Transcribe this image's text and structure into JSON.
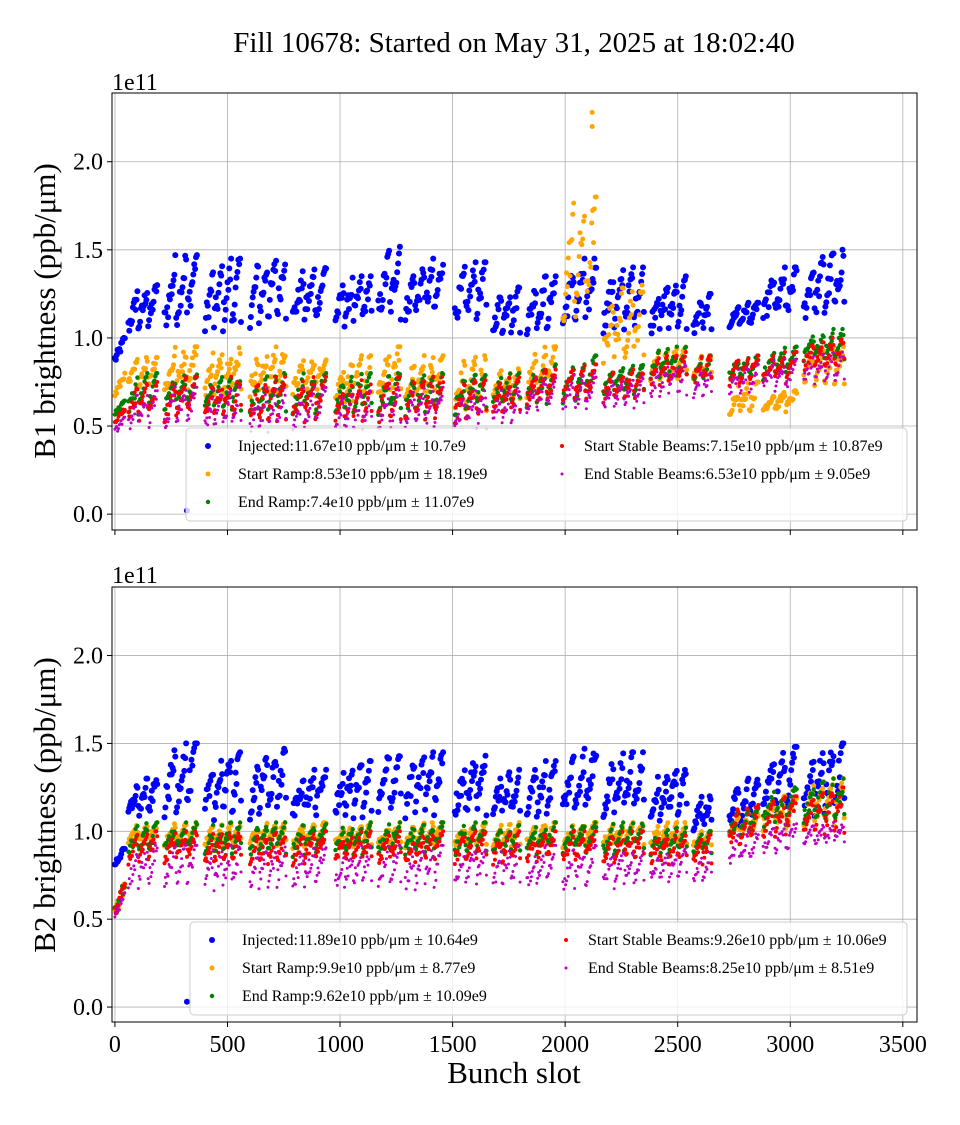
{
  "title": "Fill 10678: Started on May 31, 2025 at 18:02:40",
  "colors": {
    "injected": "#0000ff",
    "start_ramp": "#ffa500",
    "end_ramp": "#008000",
    "start_stable": "#ff0000",
    "end_stable": "#c000c0"
  },
  "chart_data": [
    {
      "type": "scatter",
      "ylabel": "B1 brightness (ppb/μm)",
      "xlabel": "",
      "offset_text": "1e11",
      "xlim": [
        -13,
        3563
      ],
      "ylim": [
        -0.09,
        2.39
      ],
      "xticks": [
        0,
        500,
        1000,
        1500,
        2000,
        2500,
        3000,
        3500
      ],
      "yticks": [
        "0.0",
        "0.5",
        "1.0",
        "1.5",
        "2.0"
      ],
      "grid": true,
      "legend_placement": "lower-right",
      "trains": [
        [
          0,
          45
        ],
        [
          60,
          190
        ],
        [
          220,
          365
        ],
        [
          400,
          560
        ],
        [
          600,
          760
        ],
        [
          790,
          940
        ],
        [
          980,
          1140
        ],
        [
          1170,
          1270
        ],
        [
          1290,
          1460
        ],
        [
          1510,
          1650
        ],
        [
          1680,
          1800
        ],
        [
          1830,
          1960
        ],
        [
          1990,
          2140
        ],
        [
          2170,
          2350
        ],
        [
          2380,
          2540
        ],
        [
          2570,
          2650
        ],
        [
          2730,
          2860
        ],
        [
          2880,
          3030
        ],
        [
          3060,
          3240
        ]
      ],
      "series": [
        {
          "name": "Injected:11.67e10 ppb/μm ± 10.7e9",
          "key": "injected",
          "ranges": [
            [
              0.85,
              1.0
            ],
            [
              1.0,
              1.3
            ],
            [
              1.0,
              1.47
            ],
            [
              1.0,
              1.45
            ],
            [
              1.05,
              1.48
            ],
            [
              1.05,
              1.4
            ],
            [
              1.05,
              1.35
            ],
            [
              1.05,
              1.52
            ],
            [
              1.05,
              1.45
            ],
            [
              1.05,
              1.43
            ],
            [
              1.0,
              1.3
            ],
            [
              1.0,
              1.35
            ],
            [
              1.0,
              1.45
            ],
            [
              1.0,
              1.4
            ],
            [
              1.0,
              1.35
            ],
            [
              1.0,
              1.25
            ],
            [
              1.05,
              1.2
            ],
            [
              1.05,
              1.4
            ],
            [
              1.05,
              1.5
            ]
          ]
        },
        {
          "name": "Start Ramp:8.53e10 ppb/μm ± 18.19e9",
          "key": "start_ramp",
          "ranges": [
            [
              0.65,
              0.8
            ],
            [
              0.7,
              0.9
            ],
            [
              0.65,
              0.95
            ],
            [
              0.65,
              0.95
            ],
            [
              0.65,
              0.95
            ],
            [
              0.65,
              0.9
            ],
            [
              0.6,
              0.9
            ],
            [
              0.6,
              0.95
            ],
            [
              0.6,
              0.9
            ],
            [
              0.55,
              0.9
            ],
            [
              0.6,
              0.85
            ],
            [
              0.65,
              0.95
            ],
            [
              1.0,
              1.8
            ],
            [
              0.8,
              1.3
            ],
            [
              0.75,
              0.95
            ],
            [
              0.75,
              0.9
            ],
            [
              0.55,
              0.75
            ],
            [
              0.57,
              0.7
            ],
            [
              0.7,
              0.95
            ]
          ]
        },
        {
          "name": "End Ramp:7.4e10 ppb/μm ± 11.07e9",
          "key": "end_ramp",
          "ranges": [
            [
              0.55,
              0.65
            ],
            [
              0.55,
              0.8
            ],
            [
              0.55,
              0.8
            ],
            [
              0.55,
              0.8
            ],
            [
              0.55,
              0.8
            ],
            [
              0.55,
              0.8
            ],
            [
              0.55,
              0.8
            ],
            [
              0.55,
              0.8
            ],
            [
              0.55,
              0.8
            ],
            [
              0.55,
              0.8
            ],
            [
              0.6,
              0.8
            ],
            [
              0.6,
              0.85
            ],
            [
              0.6,
              0.9
            ],
            [
              0.65,
              0.85
            ],
            [
              0.75,
              0.95
            ],
            [
              0.75,
              0.9
            ],
            [
              0.75,
              0.9
            ],
            [
              0.75,
              0.95
            ],
            [
              0.85,
              1.05
            ]
          ]
        },
        {
          "name": "Start Stable Beams:7.15e10 ppb/μm ± 10.87e9",
          "key": "start_stable",
          "ranges": [
            [
              0.5,
              0.6
            ],
            [
              0.5,
              0.75
            ],
            [
              0.5,
              0.78
            ],
            [
              0.5,
              0.78
            ],
            [
              0.5,
              0.78
            ],
            [
              0.5,
              0.78
            ],
            [
              0.5,
              0.76
            ],
            [
              0.5,
              0.78
            ],
            [
              0.5,
              0.78
            ],
            [
              0.5,
              0.76
            ],
            [
              0.55,
              0.78
            ],
            [
              0.6,
              0.82
            ],
            [
              0.6,
              0.85
            ],
            [
              0.62,
              0.82
            ],
            [
              0.72,
              0.92
            ],
            [
              0.72,
              0.9
            ],
            [
              0.72,
              0.9
            ],
            [
              0.72,
              0.92
            ],
            [
              0.8,
              1.0
            ]
          ]
        },
        {
          "name": "End Stable Beams:6.53e10 ppb/μm ± 9.05e9",
          "key": "end_stable",
          "ranges": [
            [
              0.45,
              0.55
            ],
            [
              0.45,
              0.7
            ],
            [
              0.45,
              0.72
            ],
            [
              0.45,
              0.72
            ],
            [
              0.45,
              0.72
            ],
            [
              0.45,
              0.72
            ],
            [
              0.45,
              0.7
            ],
            [
              0.45,
              0.72
            ],
            [
              0.45,
              0.72
            ],
            [
              0.45,
              0.7
            ],
            [
              0.5,
              0.72
            ],
            [
              0.55,
              0.78
            ],
            [
              0.55,
              0.8
            ],
            [
              0.58,
              0.78
            ],
            [
              0.65,
              0.85
            ],
            [
              0.65,
              0.82
            ],
            [
              0.65,
              0.85
            ],
            [
              0.68,
              0.88
            ],
            [
              0.72,
              0.92
            ]
          ]
        }
      ],
      "outliers": [
        {
          "series": "injected",
          "x": 320,
          "y": 0.02
        },
        {
          "series": "start_ramp",
          "x": 2120,
          "y": 2.28
        },
        {
          "series": "start_ramp",
          "x": 2120,
          "y": 2.2
        }
      ]
    },
    {
      "type": "scatter",
      "ylabel": "B2 brightness (ppb/μm)",
      "xlabel": "Bunch slot",
      "offset_text": "1e11",
      "xlim": [
        -13,
        3563
      ],
      "ylim": [
        -0.085,
        2.39
      ],
      "xticks": [
        0,
        500,
        1000,
        1500,
        2000,
        2500,
        3000,
        3500
      ],
      "yticks": [
        "0.0",
        "0.5",
        "1.0",
        "1.5",
        "2.0"
      ],
      "grid": true,
      "legend_placement": "lower-right",
      "trains": [
        [
          0,
          45
        ],
        [
          60,
          190
        ],
        [
          220,
          365
        ],
        [
          400,
          560
        ],
        [
          600,
          760
        ],
        [
          790,
          940
        ],
        [
          980,
          1140
        ],
        [
          1170,
          1270
        ],
        [
          1290,
          1460
        ],
        [
          1510,
          1650
        ],
        [
          1680,
          1800
        ],
        [
          1830,
          1960
        ],
        [
          1990,
          2140
        ],
        [
          2170,
          2350
        ],
        [
          2380,
          2540
        ],
        [
          2570,
          2650
        ],
        [
          2730,
          2860
        ],
        [
          2880,
          3030
        ],
        [
          3060,
          3240
        ]
      ],
      "series": [
        {
          "name": "Injected:11.89e10 ppb/μm ± 10.64e9",
          "key": "injected",
          "ranges": [
            [
              0.8,
              0.9
            ],
            [
              1.05,
              1.3
            ],
            [
              1.05,
              1.5
            ],
            [
              1.05,
              1.45
            ],
            [
              1.05,
              1.47
            ],
            [
              1.05,
              1.35
            ],
            [
              1.05,
              1.4
            ],
            [
              1.05,
              1.47
            ],
            [
              1.05,
              1.45
            ],
            [
              1.05,
              1.43
            ],
            [
              1.05,
              1.35
            ],
            [
              1.05,
              1.4
            ],
            [
              1.05,
              1.47
            ],
            [
              1.05,
              1.45
            ],
            [
              1.05,
              1.35
            ],
            [
              1.0,
              1.2
            ],
            [
              1.0,
              1.3
            ],
            [
              1.05,
              1.48
            ],
            [
              1.05,
              1.5
            ]
          ]
        },
        {
          "name": "Start Ramp:9.9e10 ppb/μm ± 8.77e9",
          "key": "start_ramp",
          "ranges": [
            [
              0.5,
              0.7
            ],
            [
              0.9,
              1.05
            ],
            [
              0.9,
              1.05
            ],
            [
              0.9,
              1.05
            ],
            [
              0.9,
              1.05
            ],
            [
              0.9,
              1.05
            ],
            [
              0.9,
              1.05
            ],
            [
              0.9,
              1.05
            ],
            [
              0.9,
              1.05
            ],
            [
              0.9,
              1.05
            ],
            [
              0.9,
              1.05
            ],
            [
              0.9,
              1.05
            ],
            [
              0.9,
              1.05
            ],
            [
              0.9,
              1.05
            ],
            [
              0.9,
              1.05
            ],
            [
              0.9,
              1.0
            ],
            [
              0.95,
              1.1
            ],
            [
              1.0,
              1.2
            ],
            [
              1.0,
              1.3
            ]
          ]
        },
        {
          "name": "End Ramp:9.62e10 ppb/μm ± 10.09e9",
          "key": "end_ramp",
          "ranges": [
            [
              0.5,
              0.7
            ],
            [
              0.85,
              1.05
            ],
            [
              0.85,
              1.05
            ],
            [
              0.85,
              1.05
            ],
            [
              0.85,
              1.05
            ],
            [
              0.85,
              1.05
            ],
            [
              0.85,
              1.05
            ],
            [
              0.85,
              1.05
            ],
            [
              0.85,
              1.05
            ],
            [
              0.85,
              1.05
            ],
            [
              0.85,
              1.05
            ],
            [
              0.85,
              1.05
            ],
            [
              0.85,
              1.05
            ],
            [
              0.85,
              1.05
            ],
            [
              0.85,
              1.02
            ],
            [
              0.85,
              1.0
            ],
            [
              0.95,
              1.15
            ],
            [
              1.0,
              1.25
            ],
            [
              1.0,
              1.3
            ]
          ]
        },
        {
          "name": "Start Stable Beams:9.26e10 ppb/μm ± 10.06e9",
          "key": "start_stable",
          "ranges": [
            [
              0.5,
              0.7
            ],
            [
              0.8,
              1.0
            ],
            [
              0.8,
              1.0
            ],
            [
              0.8,
              1.0
            ],
            [
              0.8,
              1.0
            ],
            [
              0.8,
              1.0
            ],
            [
              0.8,
              1.0
            ],
            [
              0.8,
              1.0
            ],
            [
              0.8,
              1.0
            ],
            [
              0.8,
              1.0
            ],
            [
              0.8,
              1.0
            ],
            [
              0.8,
              1.0
            ],
            [
              0.8,
              1.0
            ],
            [
              0.8,
              1.0
            ],
            [
              0.8,
              1.0
            ],
            [
              0.8,
              0.98
            ],
            [
              0.9,
              1.15
            ],
            [
              0.95,
              1.2
            ],
            [
              0.95,
              1.25
            ]
          ]
        },
        {
          "name": "End Stable Beams:8.25e10 ppb/μm ± 8.51e9",
          "key": "end_stable",
          "ranges": [
            [
              0.5,
              0.65
            ],
            [
              0.65,
              0.92
            ],
            [
              0.65,
              0.92
            ],
            [
              0.65,
              0.92
            ],
            [
              0.65,
              0.92
            ],
            [
              0.65,
              0.92
            ],
            [
              0.65,
              0.92
            ],
            [
              0.65,
              0.92
            ],
            [
              0.65,
              0.92
            ],
            [
              0.65,
              0.92
            ],
            [
              0.65,
              0.92
            ],
            [
              0.65,
              0.92
            ],
            [
              0.65,
              0.92
            ],
            [
              0.65,
              0.92
            ],
            [
              0.7,
              0.9
            ],
            [
              0.7,
              0.88
            ],
            [
              0.8,
              1.0
            ],
            [
              0.85,
              1.05
            ],
            [
              0.9,
              1.05
            ]
          ]
        }
      ],
      "outliers": [
        {
          "series": "injected",
          "x": 320,
          "y": 0.03
        }
      ]
    }
  ]
}
